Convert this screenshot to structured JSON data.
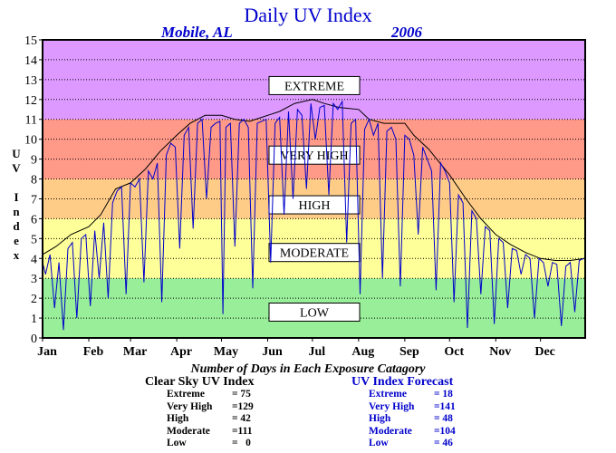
{
  "title": "Daily UV Index",
  "subtitle_location": "Mobile, AL",
  "subtitle_year": "2006",
  "ylabel_letters": [
    "U",
    "V",
    "",
    "I",
    "n",
    "d",
    "e",
    "x"
  ],
  "caption": "Number of Days in Each Exposure Catagory",
  "clear_sky": {
    "title": "Clear Sky UV Index",
    "rows": [
      {
        "label": "Extreme",
        "value": "= 75"
      },
      {
        "label": "Very High",
        "value": "=129"
      },
      {
        "label": "High",
        "value": "= 42"
      },
      {
        "label": "Moderate",
        "value": "=111"
      },
      {
        "label": "Low",
        "value": "=   0"
      }
    ]
  },
  "forecast": {
    "title": "UV Index Forecast",
    "rows": [
      {
        "label": "Extreme",
        "value": "= 18"
      },
      {
        "label": "Very High",
        "value": "=141"
      },
      {
        "label": "High",
        "value": "= 48"
      },
      {
        "label": "Moderate",
        "value": "=104"
      },
      {
        "label": "Low",
        "value": "= 46"
      }
    ]
  },
  "colors": {
    "title": "#0000cc",
    "forecast_line": "#0000cc",
    "clear_sky_line": "#000000",
    "low_band": "#99ee99",
    "moderate_band": "#ffff99",
    "high_band": "#ffcc88",
    "very_high_band": "#ff9988",
    "extreme_band": "#dd99ff"
  },
  "chart_data": {
    "type": "line",
    "ylim": [
      0,
      15
    ],
    "xlim": [
      1,
      365
    ],
    "yticks": [
      "0",
      "1",
      "2",
      "3",
      "4",
      "5",
      "6",
      "7",
      "8",
      "9",
      "10",
      "11",
      "12",
      "13",
      "14",
      "15"
    ],
    "xticks": [
      {
        "label": "Jan",
        "day": 1
      },
      {
        "label": "Feb",
        "day": 32
      },
      {
        "label": "Mar",
        "day": 60
      },
      {
        "label": "Apr",
        "day": 91
      },
      {
        "label": "May",
        "day": 121
      },
      {
        "label": "Jun",
        "day": 152
      },
      {
        "label": "Jul",
        "day": 182
      },
      {
        "label": "Aug",
        "day": 213
      },
      {
        "label": "Sep",
        "day": 244
      },
      {
        "label": "Oct",
        "day": 274
      },
      {
        "label": "Nov",
        "day": 305
      },
      {
        "label": "Dec",
        "day": 335
      }
    ],
    "grid": "horizontal dotted",
    "bands": [
      {
        "name": "LOW",
        "from": 0,
        "to": 3,
        "color": "#99ee99",
        "label_at": 1.3
      },
      {
        "name": "MODERATE",
        "from": 3,
        "to": 6,
        "color": "#ffff99",
        "label_at": 4.3
      },
      {
        "name": "HIGH",
        "from": 6,
        "to": 8,
        "color": "#ffcc88",
        "label_at": 6.7
      },
      {
        "name": "VERY HIGH",
        "from": 8,
        "to": 11,
        "color": "#ff9988",
        "label_at": 9.2
      },
      {
        "name": "EXTREME",
        "from": 11,
        "to": 15,
        "color": "#dd99ff",
        "label_at": 12.7
      }
    ],
    "series": [
      {
        "key": "clear_sky",
        "color": "#000000",
        "days": [
          1,
          10,
          20,
          32,
          40,
          50,
          60,
          70,
          80,
          91,
          100,
          110,
          121,
          130,
          140,
          152,
          160,
          170,
          182,
          190,
          200,
          213,
          220,
          230,
          244,
          250,
          260,
          274,
          285,
          295,
          305,
          315,
          325,
          335,
          345,
          355,
          365
        ],
        "values": [
          4.2,
          4.6,
          5.2,
          5.6,
          6.2,
          7.5,
          7.8,
          8.5,
          9.4,
          10.2,
          10.8,
          11.2,
          11.2,
          11.0,
          10.9,
          11.2,
          11.4,
          11.8,
          12.0,
          11.8,
          11.6,
          11.5,
          11.0,
          10.8,
          10.8,
          10.2,
          9.5,
          8.2,
          7.0,
          6.0,
          5.2,
          4.7,
          4.3,
          4.0,
          3.9,
          3.9,
          4.0
        ]
      },
      {
        "key": "forecast",
        "color": "#0000cc",
        "days": [
          1,
          3,
          6,
          9,
          12,
          15,
          18,
          21,
          24,
          27,
          30,
          33,
          36,
          39,
          42,
          45,
          48,
          51,
          54,
          57,
          60,
          63,
          66,
          69,
          72,
          75,
          78,
          81,
          84,
          87,
          90,
          93,
          96,
          99,
          102,
          105,
          108,
          111,
          114,
          117,
          120,
          122,
          124,
          127,
          130,
          133,
          136,
          139,
          142,
          145,
          148,
          151,
          154,
          157,
          160,
          163,
          166,
          169,
          172,
          175,
          178,
          181,
          184,
          187,
          190,
          193,
          196,
          199,
          202,
          205,
          208,
          211,
          214,
          217,
          220,
          223,
          226,
          229,
          232,
          235,
          238,
          241,
          244,
          247,
          250,
          253,
          256,
          259,
          262,
          265,
          268,
          271,
          274,
          277,
          280,
          283,
          286,
          289,
          292,
          295,
          298,
          301,
          304,
          307,
          310,
          313,
          316,
          319,
          322,
          325,
          328,
          331,
          334,
          337,
          340,
          343,
          346,
          349,
          352,
          355,
          358,
          361,
          364
        ],
        "values": [
          3.8,
          3.2,
          4.2,
          1.5,
          3.8,
          0.4,
          4.5,
          4.8,
          1.0,
          5.0,
          5.2,
          1.6,
          5.4,
          3.0,
          5.8,
          2.0,
          6.8,
          7.4,
          7.6,
          2.2,
          7.8,
          7.6,
          8.0,
          2.8,
          8.4,
          8.0,
          8.8,
          1.8,
          9.2,
          9.8,
          9.6,
          4.5,
          10.2,
          10.6,
          5.5,
          10.8,
          11.0,
          7.0,
          10.6,
          10.8,
          10.9,
          1.2,
          10.6,
          10.8,
          4.6,
          10.8,
          11.0,
          10.6,
          2.5,
          10.8,
          10.9,
          11.0,
          3.8,
          10.8,
          11.1,
          6.2,
          11.4,
          7.0,
          11.5,
          11.2,
          7.5,
          11.8,
          10.0,
          11.6,
          11.7,
          7.2,
          11.8,
          11.5,
          11.9,
          4.8,
          10.8,
          11.0,
          2.2,
          10.5,
          11.0,
          10.2,
          10.8,
          3.0,
          10.4,
          10.6,
          10.0,
          2.6,
          10.2,
          10.0,
          9.2,
          5.2,
          9.6,
          9.0,
          8.4,
          2.4,
          8.8,
          8.4,
          7.8,
          1.8,
          7.2,
          6.8,
          0.5,
          6.4,
          6.0,
          2.2,
          5.6,
          5.4,
          0.7,
          5.0,
          4.8,
          1.5,
          4.5,
          4.4,
          3.2,
          4.2,
          4.0,
          1.0,
          4.0,
          3.8,
          2.6,
          3.8,
          3.7,
          0.6,
          3.6,
          3.8,
          1.3,
          3.9,
          4.0
        ]
      }
    ]
  }
}
